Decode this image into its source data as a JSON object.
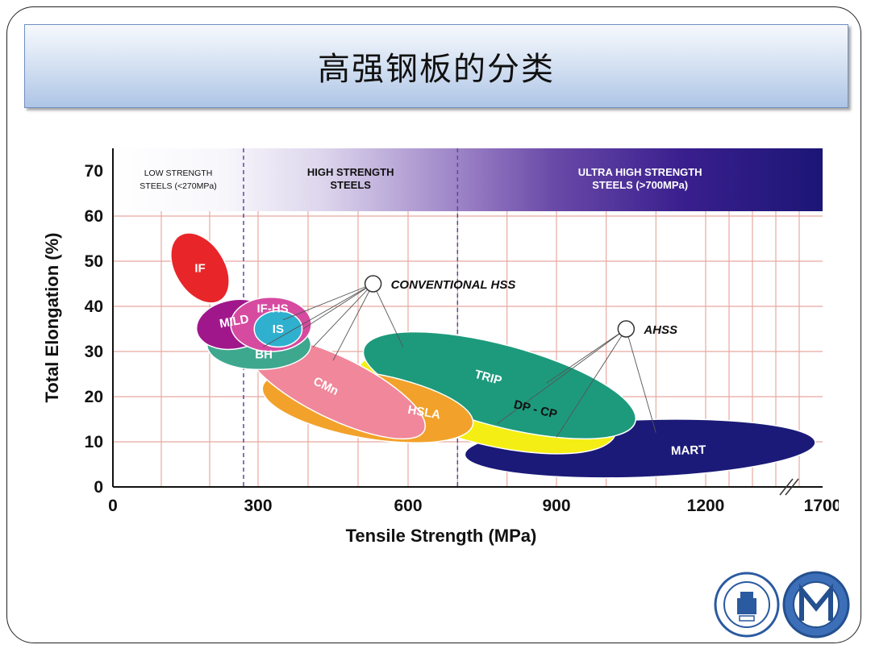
{
  "slide": {
    "title": "高强钢板的分类"
  },
  "chart_data": {
    "type": "scatter",
    "xlabel": "Tensile Strength (MPa)",
    "ylabel": "Total Elongation (%)",
    "x_ticks": [
      "0",
      "300",
      "600",
      "900",
      "1200",
      "1700"
    ],
    "y_ticks": [
      "0",
      "10",
      "20",
      "30",
      "40",
      "50",
      "60",
      "70"
    ],
    "ylim": [
      0,
      75
    ],
    "grid": true,
    "axis_break_x": true,
    "bands": [
      {
        "name": "LOW STRENGTH STEELS (<270MPa)",
        "line1": "LOW STRENGTH",
        "line2": "STEELS (<270MPa)",
        "x_from": 0,
        "x_to": 270
      },
      {
        "name": "HIGH STRENGTH STEELS",
        "line1": "HIGH STRENGTH",
        "line2": "STEELS",
        "x_from": 270,
        "x_to": 700
      },
      {
        "name": "ULTRA HIGH STRENGTH STEELS (>700MPa)",
        "line1": "ULTRA HIGH STRENGTH",
        "line2": "STEELS (>700MPa)",
        "x_from": 700,
        "x_to": 1700
      }
    ],
    "regions": [
      {
        "name": "MART",
        "color": "#1b1a78",
        "x_range": [
          700,
          1700
        ],
        "y_range": [
          2,
          15
        ]
      },
      {
        "name": "DP - CP",
        "color": "#f4ee14",
        "x_range": [
          490,
          1030
        ],
        "y_range": [
          8,
          30
        ]
      },
      {
        "name": "TRIP",
        "color": "#1d9a7c",
        "x_range": [
          500,
          1070
        ],
        "y_range": [
          12,
          33
        ]
      },
      {
        "name": "HSLA",
        "color": "#f2a22a",
        "x_range": [
          300,
          740
        ],
        "y_range": [
          10,
          26
        ]
      },
      {
        "name": "CMn",
        "color": "#f0879a",
        "x_range": [
          270,
          640
        ],
        "y_range": [
          13,
          31
        ]
      },
      {
        "name": "BH",
        "color": "#3ea88f",
        "x_range": [
          190,
          410
        ],
        "y_range": [
          26,
          37
        ]
      },
      {
        "name": "MILD",
        "color": "#a0178c",
        "x_range": [
          170,
          330
        ],
        "y_range": [
          30,
          42
        ]
      },
      {
        "name": "IF-HS",
        "color": "#d64aa0",
        "x_range": [
          240,
          410
        ],
        "y_range": [
          30,
          42
        ]
      },
      {
        "name": "IS",
        "color": "#2fb0cf",
        "x_range": [
          290,
          390
        ],
        "y_range": [
          31,
          39
        ]
      },
      {
        "name": "IF",
        "color": "#e8262a",
        "x_range": [
          120,
          240
        ],
        "y_range": [
          40,
          57
        ]
      }
    ],
    "annotations": [
      {
        "text": "CONVENTIONAL HSS",
        "x": 530,
        "y": 45
      },
      {
        "text": "AHSS",
        "x": 1040,
        "y": 35
      }
    ]
  }
}
